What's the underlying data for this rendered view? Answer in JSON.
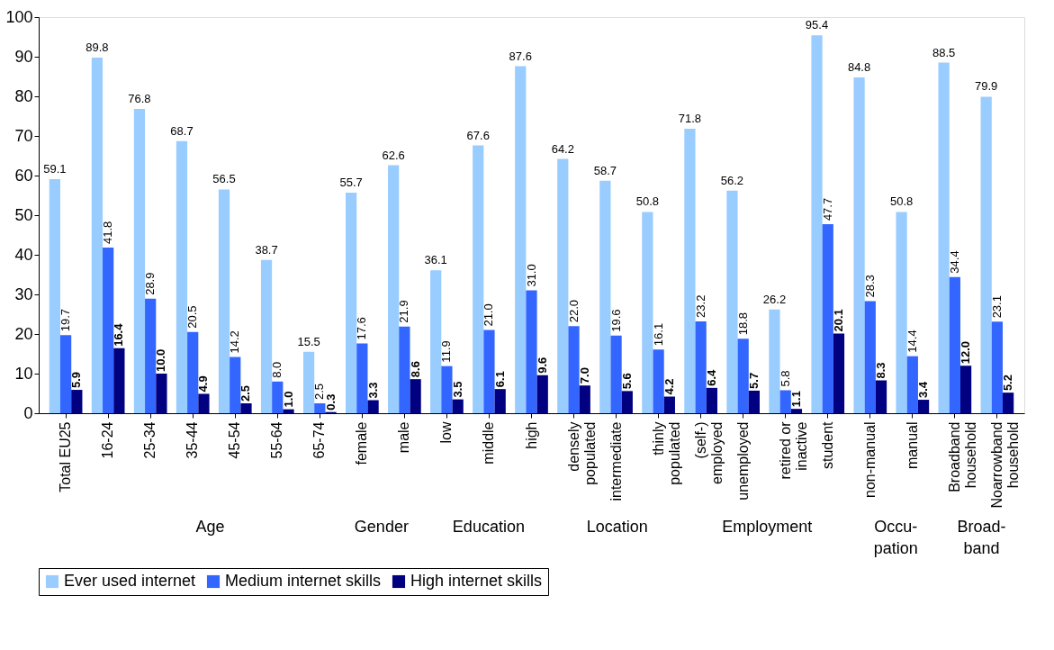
{
  "chart_data": {
    "type": "bar",
    "categories": [
      "Total EU25",
      "16-24",
      "25-34",
      "35-44",
      "45-54",
      "55-64",
      "65-74",
      "female",
      "male",
      "low",
      "middle",
      "high",
      "densely\npopulated",
      "intermediate",
      "thinly\npopulated",
      "(self-)\nemployed",
      "unemployed",
      "retired or\ninactive",
      "student",
      "non-manual",
      "manual",
      "Broadband\nhousehold",
      "Noarrowband\nhousehold"
    ],
    "series": [
      {
        "name": "Ever used internet",
        "color": "#99ccff",
        "values": [
          59.1,
          89.8,
          76.8,
          68.7,
          56.5,
          38.7,
          15.5,
          55.7,
          62.6,
          36.1,
          67.6,
          87.6,
          64.2,
          58.7,
          50.8,
          71.8,
          56.2,
          26.2,
          95.4,
          84.8,
          50.8,
          88.5,
          79.9
        ]
      },
      {
        "name": "Medium internet skills",
        "color": "#3366ff",
        "values": [
          19.7,
          41.8,
          28.9,
          20.5,
          14.2,
          8.0,
          2.5,
          17.6,
          21.9,
          11.9,
          21.0,
          31.0,
          22.0,
          19.6,
          16.1,
          23.2,
          18.8,
          5.8,
          47.7,
          28.3,
          14.4,
          34.4,
          23.1
        ],
        "value_labels": [
          "19.7",
          "41.8",
          "28.9",
          "20.5",
          "14.2",
          "8.0",
          "2.5",
          "17.6",
          "21.9",
          "11.9",
          "21.0",
          "31.0",
          "22.0",
          "19.6",
          "16.1",
          "23.2",
          "18.8",
          "5.8",
          "47.7",
          "28.3",
          "14.4",
          "34.4",
          "23.1"
        ]
      },
      {
        "name": "High internet skills",
        "color": "#000080",
        "values": [
          5.9,
          16.4,
          10.0,
          4.9,
          2.5,
          1.0,
          0.3,
          3.3,
          8.6,
          3.5,
          6.1,
          9.6,
          7.0,
          5.6,
          4.2,
          6.4,
          5.7,
          1.1,
          20.1,
          8.3,
          3.4,
          12.0,
          5.2
        ],
        "value_labels": [
          "5.9",
          "16.4",
          "10.0",
          "4.9",
          "2.5",
          "1.0",
          "0.3",
          "3.3",
          "8.6",
          "3.5",
          "6.1",
          "9.6",
          "7.0",
          "5.6",
          "4.2",
          "6.4",
          "5.7",
          "1.1",
          "20.1",
          "8.3",
          "3.4",
          "12.0",
          "5.2"
        ]
      }
    ],
    "ylim": [
      0,
      100
    ],
    "yticks": [
      0,
      10,
      20,
      30,
      40,
      50,
      60,
      70,
      80,
      90,
      100
    ],
    "data_labels": true,
    "grid": false,
    "legend": "bottom",
    "annotations": [
      "Age",
      "Gender",
      "Education",
      "Location",
      "Employment",
      "Occu-\npation",
      "Broad-\nband"
    ]
  }
}
